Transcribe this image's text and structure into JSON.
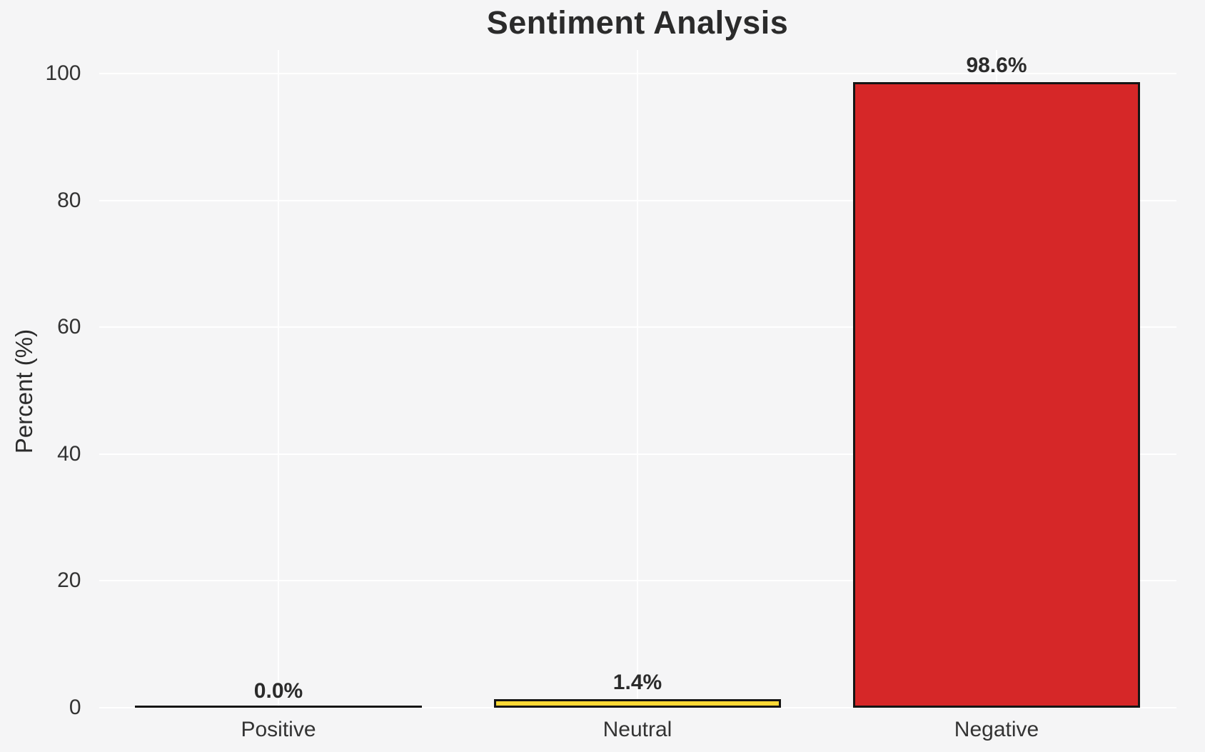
{
  "chart_data": {
    "type": "bar",
    "title": "Sentiment Analysis",
    "xlabel": "",
    "ylabel": "Percent (%)",
    "categories": [
      "Positive",
      "Neutral",
      "Negative"
    ],
    "values": [
      0.0,
      1.4,
      98.6
    ],
    "value_labels": [
      "0.0%",
      "1.4%",
      "98.6%"
    ],
    "bar_fill_colors": [
      null,
      "#fdd835",
      "#d62728"
    ],
    "bar_edge_color": "#151515",
    "yticks": [
      0,
      20,
      40,
      60,
      80,
      100
    ],
    "ytick_labels": [
      "0",
      "20",
      "40",
      "60",
      "80",
      "100"
    ],
    "ylim": [
      0,
      104
    ],
    "grid": true,
    "grid_color": "#ffffff",
    "background_color": "#f5f5f6",
    "text_color": "#2b2b2b",
    "tick_text_color": "#333333",
    "legend_position": "none"
  }
}
